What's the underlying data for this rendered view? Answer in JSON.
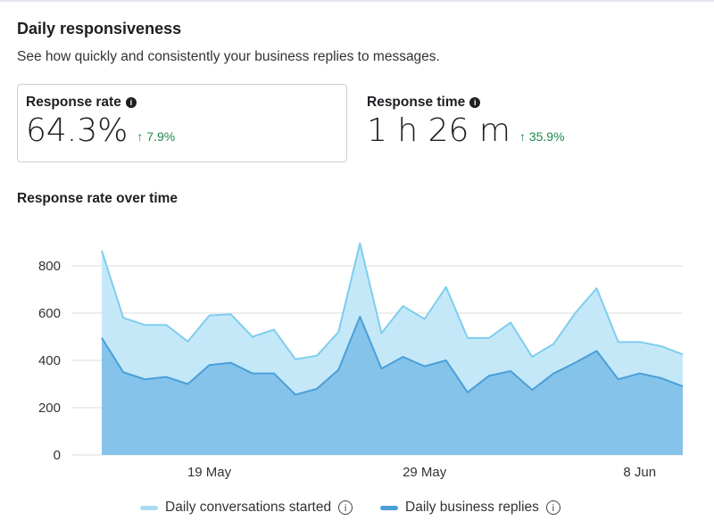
{
  "header": {
    "title": "Daily responsiveness",
    "subtitle": "See how quickly and consistently your business replies to messages."
  },
  "metrics": [
    {
      "label": "Response rate",
      "value": "64.3%",
      "delta": "↑ 7.9%"
    },
    {
      "label": "Response time",
      "value": "1 h 26 m",
      "delta": "↑ 35.9%"
    }
  ],
  "colors": {
    "conversations": "#c4e8f8",
    "conversations_line": "#7fcdee",
    "replies": "#82c1ea",
    "replies_line": "#4a9fd8",
    "positive": "#1e8a4c"
  },
  "chart_data": {
    "type": "area",
    "title": "Response rate over time",
    "x_ticks": [
      {
        "index": 5,
        "label": "19 May"
      },
      {
        "index": 15,
        "label": "29 May"
      },
      {
        "index": 25,
        "label": "8 Jun"
      }
    ],
    "y_ticks": [
      "0",
      "200",
      "400",
      "600",
      "800"
    ],
    "ylim": [
      0,
      800
    ],
    "grid": true,
    "legend": "bottom",
    "series": [
      {
        "name": "Daily conversations started",
        "values": [
          865,
          580,
          550,
          550,
          480,
          590,
          595,
          500,
          530,
          405,
          420,
          520,
          895,
          515,
          630,
          575,
          710,
          495,
          495,
          560,
          415,
          470,
          600,
          705,
          478,
          478,
          460,
          425
        ]
      },
      {
        "name": "Daily business replies",
        "values": [
          495,
          350,
          320,
          330,
          300,
          380,
          390,
          345,
          345,
          255,
          280,
          360,
          585,
          365,
          415,
          375,
          400,
          265,
          335,
          355,
          275,
          345,
          390,
          440,
          320,
          345,
          325,
          290
        ]
      }
    ]
  }
}
